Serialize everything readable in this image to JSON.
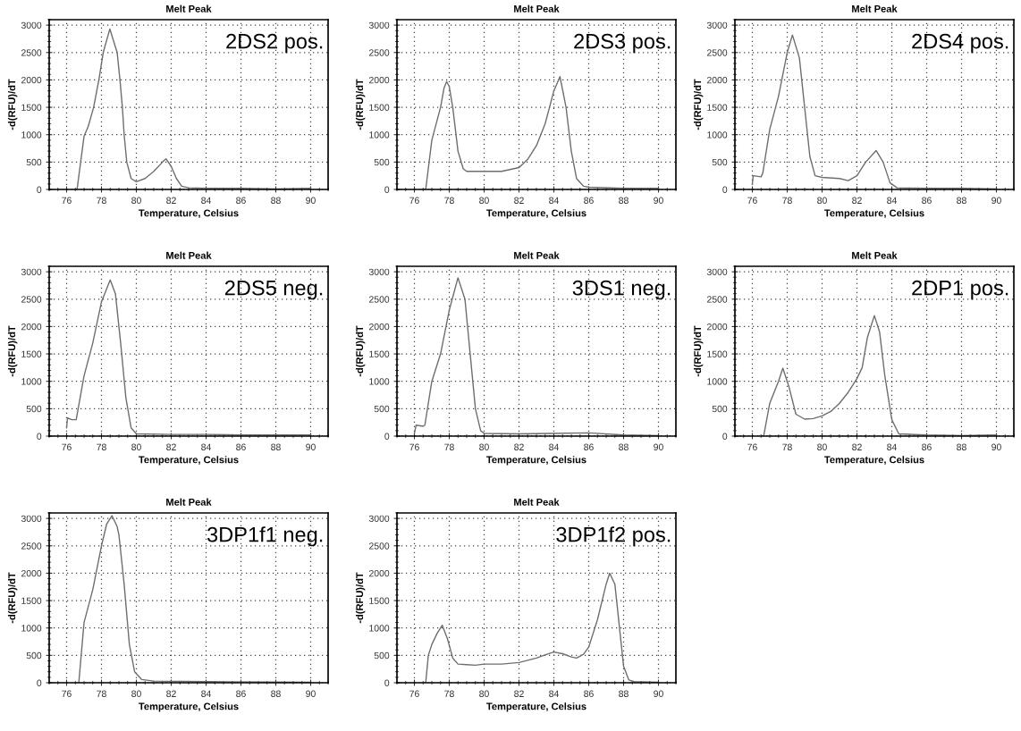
{
  "chart_data": [
    {
      "type": "line",
      "title": "Melt Peak",
      "xlabel": "Temperature, Celsius",
      "ylabel": "-d(RFU)/dT",
      "xlim": [
        75,
        91
      ],
      "ylim": [
        0,
        3100
      ],
      "xticks": [
        76,
        78,
        80,
        82,
        84,
        86,
        88,
        90
      ],
      "yticks": [
        0,
        500,
        1000,
        1500,
        2000,
        2500,
        3000
      ],
      "grid": true,
      "annotations": [
        "2DS2 pos."
      ],
      "series": [
        {
          "color": "#6e6e6e",
          "x": [
            76.6,
            77.0,
            77.24,
            77.55,
            77.85,
            78.1,
            78.48,
            78.9,
            79.06,
            79.2,
            79.3,
            79.45,
            79.7,
            80.0,
            80.5,
            81.0,
            81.5,
            81.7,
            82.0,
            82.3,
            82.6,
            83.0,
            84.0,
            86.0,
            88.0,
            90.0
          ],
          "values": [
            0,
            970,
            1150,
            1500,
            2000,
            2500,
            2930,
            2500,
            2000,
            1500,
            1000,
            500,
            200,
            140,
            200,
            330,
            500,
            560,
            420,
            200,
            60,
            30,
            20,
            20,
            10,
            20
          ]
        }
      ]
    },
    {
      "type": "line",
      "title": "Melt Peak",
      "xlabel": "Temperature, Celsius",
      "ylabel": "-d(RFU)/dT",
      "xlim": [
        75,
        91
      ],
      "ylim": [
        0,
        3100
      ],
      "xticks": [
        76,
        78,
        80,
        82,
        84,
        86,
        88,
        90
      ],
      "yticks": [
        0,
        500,
        1000,
        1500,
        2000,
        2500,
        3000
      ],
      "grid": true,
      "annotations": [
        "2DS3 pos."
      ],
      "series": [
        {
          "color": "#6e6e6e",
          "x": [
            76.65,
            77.0,
            77.5,
            77.7,
            77.85,
            78.0,
            78.2,
            78.5,
            78.8,
            79.0,
            80.0,
            81.0,
            82.0,
            82.5,
            83.0,
            83.5,
            84.0,
            84.35,
            84.7,
            85.0,
            85.3,
            85.7,
            86.0,
            88.0,
            90.0
          ],
          "values": [
            0,
            900,
            1500,
            1850,
            1970,
            1880,
            1500,
            700,
            380,
            330,
            330,
            330,
            400,
            550,
            800,
            1200,
            1800,
            2060,
            1500,
            700,
            200,
            60,
            40,
            20,
            20
          ]
        }
      ]
    },
    {
      "type": "line",
      "title": "Melt Peak",
      "xlabel": "Temperature, Celsius",
      "ylabel": "-d(RFU)/dT",
      "xlim": [
        75,
        91
      ],
      "ylim": [
        0,
        3100
      ],
      "xticks": [
        76,
        78,
        80,
        82,
        84,
        86,
        88,
        90
      ],
      "yticks": [
        0,
        500,
        1000,
        1500,
        2000,
        2500,
        3000
      ],
      "grid": true,
      "annotations": [
        "2DS4 pos."
      ],
      "series": [
        {
          "color": "#6e6e6e",
          "x": [
            76.0,
            76.05,
            76.5,
            76.6,
            77.0,
            77.5,
            78.0,
            78.3,
            78.7,
            79.0,
            79.3,
            79.6,
            80.0,
            81.0,
            81.5,
            82.0,
            82.5,
            83.1,
            83.5,
            83.9,
            84.3,
            86.0,
            88.0,
            90.0
          ],
          "values": [
            100,
            250,
            230,
            300,
            1100,
            1700,
            2500,
            2820,
            2400,
            1500,
            600,
            250,
            220,
            200,
            160,
            250,
            500,
            710,
            500,
            120,
            30,
            20,
            20,
            10
          ]
        }
      ]
    },
    {
      "type": "line",
      "title": "Melt Peak",
      "xlabel": "Temperature, Celsius",
      "ylabel": "-d(RFU)/dT",
      "xlim": [
        75,
        91
      ],
      "ylim": [
        0,
        3100
      ],
      "xticks": [
        76,
        78,
        80,
        82,
        84,
        86,
        88,
        90
      ],
      "yticks": [
        0,
        500,
        1000,
        1500,
        2000,
        2500,
        3000
      ],
      "grid": true,
      "annotations": [
        "2DS5 neg."
      ],
      "series": [
        {
          "color": "#6e6e6e",
          "x": [
            76.0,
            76.05,
            76.3,
            76.55,
            77.0,
            77.5,
            78.0,
            78.5,
            78.8,
            79.1,
            79.4,
            79.7,
            80.0,
            82.0,
            84.0,
            86.0,
            88.0,
            90.0
          ],
          "values": [
            150,
            330,
            300,
            300,
            1100,
            1700,
            2450,
            2850,
            2600,
            1700,
            700,
            150,
            40,
            30,
            30,
            20,
            20,
            20
          ]
        }
      ]
    },
    {
      "type": "line",
      "title": "Melt Peak",
      "xlabel": "Temperature, Celsius",
      "ylabel": "-d(RFU)/dT",
      "xlim": [
        75,
        91
      ],
      "ylim": [
        0,
        3100
      ],
      "xticks": [
        76,
        78,
        80,
        82,
        84,
        86,
        88,
        90
      ],
      "yticks": [
        0,
        500,
        1000,
        1500,
        2000,
        2500,
        3000
      ],
      "grid": true,
      "annotations": [
        "3DS1 neg."
      ],
      "series": [
        {
          "color": "#6e6e6e",
          "x": [
            76.0,
            76.1,
            76.5,
            76.6,
            77.0,
            77.5,
            78.0,
            78.5,
            78.9,
            79.2,
            79.5,
            79.8,
            80.0,
            82.0,
            84.0,
            86.0,
            88.0,
            90.0
          ],
          "values": [
            50,
            200,
            180,
            200,
            1000,
            1500,
            2300,
            2890,
            2500,
            1500,
            500,
            100,
            50,
            40,
            50,
            60,
            20,
            10
          ]
        }
      ]
    },
    {
      "type": "line",
      "title": "Melt Peak",
      "xlabel": "Temperature, Celsius",
      "ylabel": "-d(RFU)/dT",
      "xlim": [
        75,
        91
      ],
      "ylim": [
        0,
        3100
      ],
      "xticks": [
        76,
        78,
        80,
        82,
        84,
        86,
        88,
        90
      ],
      "yticks": [
        0,
        500,
        1000,
        1500,
        2000,
        2500,
        3000
      ],
      "grid": true,
      "annotations": [
        "2DP1 pos."
      ],
      "series": [
        {
          "color": "#6e6e6e",
          "x": [
            76.65,
            77.0,
            77.5,
            77.75,
            78.1,
            78.5,
            79.0,
            79.5,
            80.0,
            80.5,
            81.0,
            81.5,
            82.0,
            82.3,
            82.6,
            83.0,
            83.3,
            83.6,
            84.0,
            84.4,
            86.0,
            88.0,
            90.0
          ],
          "values": [
            0,
            600,
            1000,
            1240,
            900,
            400,
            310,
            320,
            370,
            450,
            600,
            800,
            1050,
            1250,
            1800,
            2200,
            1900,
            1100,
            300,
            40,
            20,
            10,
            20
          ]
        }
      ]
    },
    {
      "type": "line",
      "title": "Melt Peak",
      "xlabel": "Temperature, Celsius",
      "ylabel": "-d(RFU)/dT",
      "xlim": [
        75,
        91
      ],
      "ylim": [
        0,
        3100
      ],
      "xticks": [
        76,
        78,
        80,
        82,
        84,
        86,
        88,
        90
      ],
      "yticks": [
        0,
        500,
        1000,
        1500,
        2000,
        2500,
        3000
      ],
      "grid": true,
      "annotations": [
        "3DP1f1 neg."
      ],
      "series": [
        {
          "color": "#6e6e6e",
          "x": [
            76.7,
            77.0,
            77.5,
            78.0,
            78.3,
            78.6,
            78.9,
            79.0,
            79.3,
            79.6,
            79.9,
            80.3,
            81.0,
            84.0,
            90.0
          ],
          "values": [
            0,
            1100,
            1700,
            2500,
            2900,
            3050,
            2850,
            2700,
            1800,
            700,
            200,
            60,
            30,
            20,
            10
          ]
        }
      ]
    },
    {
      "type": "line",
      "title": "Melt Peak",
      "xlabel": "Temperature, Celsius",
      "ylabel": "-d(RFU)/dT",
      "xlim": [
        75,
        91
      ],
      "ylim": [
        0,
        3100
      ],
      "xticks": [
        76,
        78,
        80,
        82,
        84,
        86,
        88,
        90
      ],
      "yticks": [
        0,
        500,
        1000,
        1500,
        2000,
        2500,
        3000
      ],
      "grid": true,
      "annotations": [
        "3DP1f2 pos."
      ],
      "series": [
        {
          "color": "#6e6e6e",
          "x": [
            76.65,
            76.8,
            77.0,
            77.3,
            77.6,
            77.9,
            78.2,
            78.5,
            79.0,
            79.5,
            80.0,
            81.0,
            82.0,
            83.0,
            83.6,
            84.0,
            84.5,
            85.0,
            85.3,
            85.7,
            86.0,
            86.5,
            87.0,
            87.2,
            87.5,
            87.8,
            88.0,
            88.3,
            88.6,
            90.0
          ],
          "values": [
            0,
            500,
            700,
            900,
            1050,
            800,
            450,
            340,
            330,
            320,
            340,
            340,
            370,
            450,
            520,
            560,
            530,
            470,
            450,
            520,
            650,
            1150,
            1800,
            2000,
            1800,
            900,
            300,
            50,
            20,
            10
          ]
        }
      ]
    }
  ]
}
